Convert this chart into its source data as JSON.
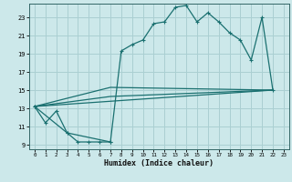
{
  "xlabel": "Humidex (Indice chaleur)",
  "xlim": [
    -0.5,
    23.5
  ],
  "ylim": [
    8.5,
    24.5
  ],
  "xticks": [
    0,
    1,
    2,
    3,
    4,
    5,
    6,
    7,
    8,
    9,
    10,
    11,
    12,
    13,
    14,
    15,
    16,
    17,
    18,
    19,
    20,
    21,
    22,
    23
  ],
  "yticks": [
    9,
    11,
    13,
    15,
    17,
    19,
    21,
    23
  ],
  "bg_color": "#cce8ea",
  "grid_color": "#aacfd2",
  "line_color": "#1a7070",
  "curve1_x": [
    0,
    1,
    2,
    3,
    4,
    5,
    6,
    7
  ],
  "curve1_y": [
    13.2,
    11.4,
    12.7,
    10.3,
    9.3,
    9.3,
    9.3,
    9.3
  ],
  "curve2_x": [
    0,
    3,
    7,
    8,
    9,
    10,
    11,
    12,
    13,
    14,
    15,
    16,
    17,
    18,
    19,
    20,
    21,
    22
  ],
  "curve2_y": [
    13.2,
    10.3,
    9.3,
    19.3,
    20.0,
    20.5,
    22.3,
    22.5,
    24.1,
    24.3,
    22.5,
    23.5,
    22.5,
    21.3,
    20.5,
    18.3,
    23.0,
    15.0
  ],
  "line1_x": [
    0,
    22
  ],
  "line1_y": [
    13.2,
    15.0
  ],
  "line2_x": [
    0,
    7,
    22
  ],
  "line2_y": [
    13.2,
    15.3,
    15.0
  ],
  "line3_x": [
    0,
    7,
    22
  ],
  "line3_y": [
    13.2,
    14.3,
    15.0
  ]
}
